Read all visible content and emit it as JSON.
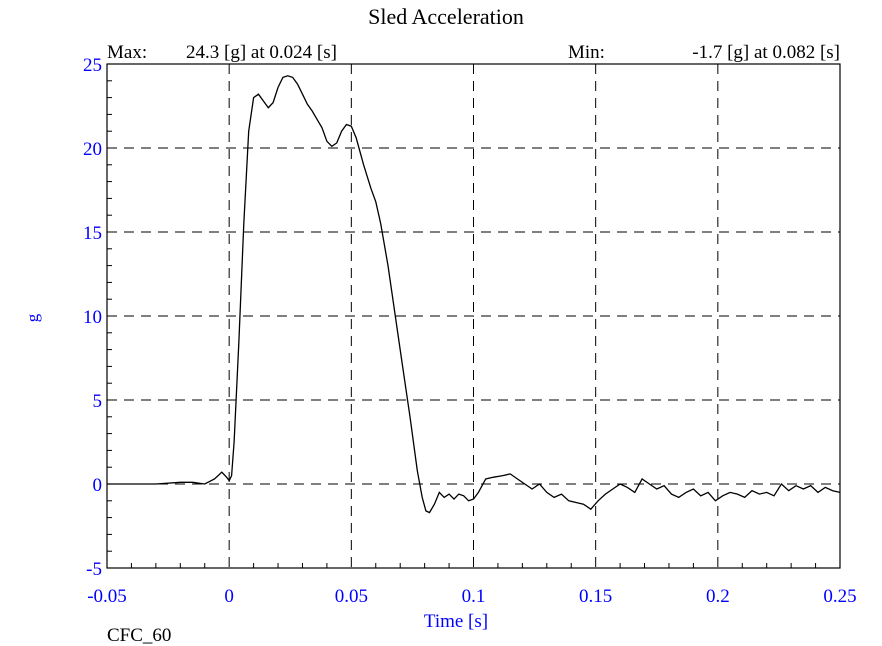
{
  "chart_data": {
    "type": "line",
    "title": "Sled Acceleration",
    "xlabel": "Time [s]",
    "ylabel": "g",
    "filter_label": "CFC_60",
    "max_text": {
      "label": "Max:",
      "value": "24.3 [g] at 0.024 [s]"
    },
    "min_text": {
      "label": "Min:",
      "value": "-1.7 [g] at 0.082 [s]"
    },
    "xlim": [
      -0.05,
      0.25
    ],
    "ylim": [
      -5,
      25
    ],
    "x_ticks": [
      -0.05,
      0,
      0.05,
      0.1,
      0.15,
      0.2,
      0.25
    ],
    "x_tick_labels": [
      "-0.05",
      "0",
      "0.05",
      "0.1",
      "0.15",
      "0.2",
      "0.25"
    ],
    "y_ticks": [
      -5,
      0,
      5,
      10,
      15,
      20,
      25
    ],
    "y_tick_labels": [
      "-5",
      "0",
      "5",
      "10",
      "15",
      "20",
      "25"
    ],
    "grid": true,
    "colors": {
      "line": "#000000",
      "axis_text": "#0000ff",
      "title_text": "#000000"
    },
    "series": [
      {
        "x": [
          -0.05,
          -0.04,
          -0.03,
          -0.02,
          -0.015,
          -0.01,
          -0.006,
          -0.003,
          -0.001,
          0.0,
          0.001,
          0.002,
          0.004,
          0.006,
          0.008,
          0.01,
          0.012,
          0.014,
          0.016,
          0.018,
          0.02,
          0.022,
          0.024,
          0.026,
          0.028,
          0.03,
          0.032,
          0.034,
          0.036,
          0.038,
          0.04,
          0.042,
          0.044,
          0.046,
          0.048,
          0.05,
          0.052,
          0.055,
          0.058,
          0.06,
          0.062,
          0.065,
          0.068,
          0.071,
          0.074,
          0.077,
          0.079,
          0.0805,
          0.082,
          0.084,
          0.086,
          0.088,
          0.09,
          0.092,
          0.094,
          0.096,
          0.098,
          0.1,
          0.102,
          0.105,
          0.108,
          0.112,
          0.115,
          0.118,
          0.121,
          0.124,
          0.127,
          0.13,
          0.133,
          0.136,
          0.139,
          0.142,
          0.145,
          0.148,
          0.151,
          0.154,
          0.157,
          0.16,
          0.163,
          0.166,
          0.169,
          0.172,
          0.175,
          0.178,
          0.181,
          0.184,
          0.187,
          0.19,
          0.193,
          0.196,
          0.199,
          0.202,
          0.205,
          0.208,
          0.211,
          0.214,
          0.217,
          0.22,
          0.223,
          0.226,
          0.229,
          0.232,
          0.235,
          0.238,
          0.241,
          0.244,
          0.247,
          0.25
        ],
        "y": [
          0.0,
          0.0,
          0.0,
          0.1,
          0.1,
          0.0,
          0.3,
          0.7,
          0.4,
          0.2,
          0.5,
          2.5,
          8.5,
          15.5,
          21.0,
          23.0,
          23.2,
          22.8,
          22.4,
          22.7,
          23.6,
          24.2,
          24.3,
          24.2,
          23.8,
          23.2,
          22.6,
          22.2,
          21.7,
          21.2,
          20.4,
          20.1,
          20.3,
          21.0,
          21.4,
          21.3,
          20.6,
          19.0,
          17.6,
          16.8,
          15.5,
          13.0,
          10.0,
          7.0,
          4.0,
          0.8,
          -0.8,
          -1.6,
          -1.7,
          -1.2,
          -0.5,
          -0.8,
          -0.6,
          -0.9,
          -0.6,
          -0.7,
          -1.0,
          -0.9,
          -0.5,
          0.3,
          0.4,
          0.5,
          0.6,
          0.3,
          0.0,
          -0.3,
          0.0,
          -0.5,
          -0.8,
          -0.6,
          -1.0,
          -1.1,
          -1.2,
          -1.5,
          -1.0,
          -0.6,
          -0.3,
          0.0,
          -0.2,
          -0.5,
          0.3,
          0.0,
          -0.3,
          -0.1,
          -0.6,
          -0.8,
          -0.5,
          -0.3,
          -0.7,
          -0.5,
          -1.0,
          -0.7,
          -0.5,
          -0.6,
          -0.8,
          -0.4,
          -0.6,
          -0.5,
          -0.7,
          0.0,
          -0.4,
          -0.1,
          -0.3,
          -0.1,
          -0.5,
          -0.2,
          -0.4,
          -0.5
        ]
      }
    ]
  }
}
